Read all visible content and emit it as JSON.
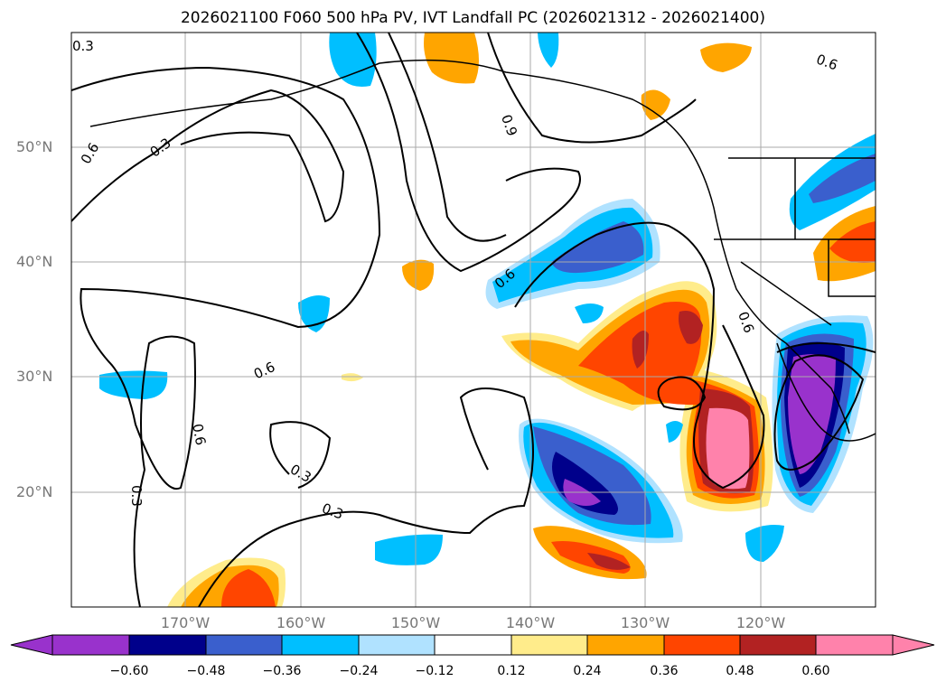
{
  "title": "2026021100 F060 500 hPa PV, IVT Landfall PC (2026021312 - 2026021400)",
  "lat_labels": [
    "50°N",
    "40°N",
    "30°N",
    "20°N"
  ],
  "lon_labels": [
    "170°W",
    "160°W",
    "150°W",
    "140°W",
    "130°W",
    "120°W"
  ],
  "colorbar": {
    "ticks": [
      "−0.60",
      "−0.48",
      "−0.36",
      "−0.24",
      "−0.12",
      "0.12",
      "0.24",
      "0.36",
      "0.48",
      "0.60"
    ],
    "colors": [
      "#9932cc",
      "#00008b",
      "#3a5fcd",
      "#00bfff",
      "#b0e2ff",
      "#ffffff",
      "#ffec8b",
      "#ffa500",
      "#ff4500",
      "#b22222",
      "#ff82ab"
    ]
  },
  "contour_labels": [
    "0.3",
    "0.6",
    "0.3",
    "0.9",
    "0.6",
    "0.6",
    "0.6",
    "0.6",
    "0.3",
    "0.3",
    "0.3",
    "0.6"
  ]
}
